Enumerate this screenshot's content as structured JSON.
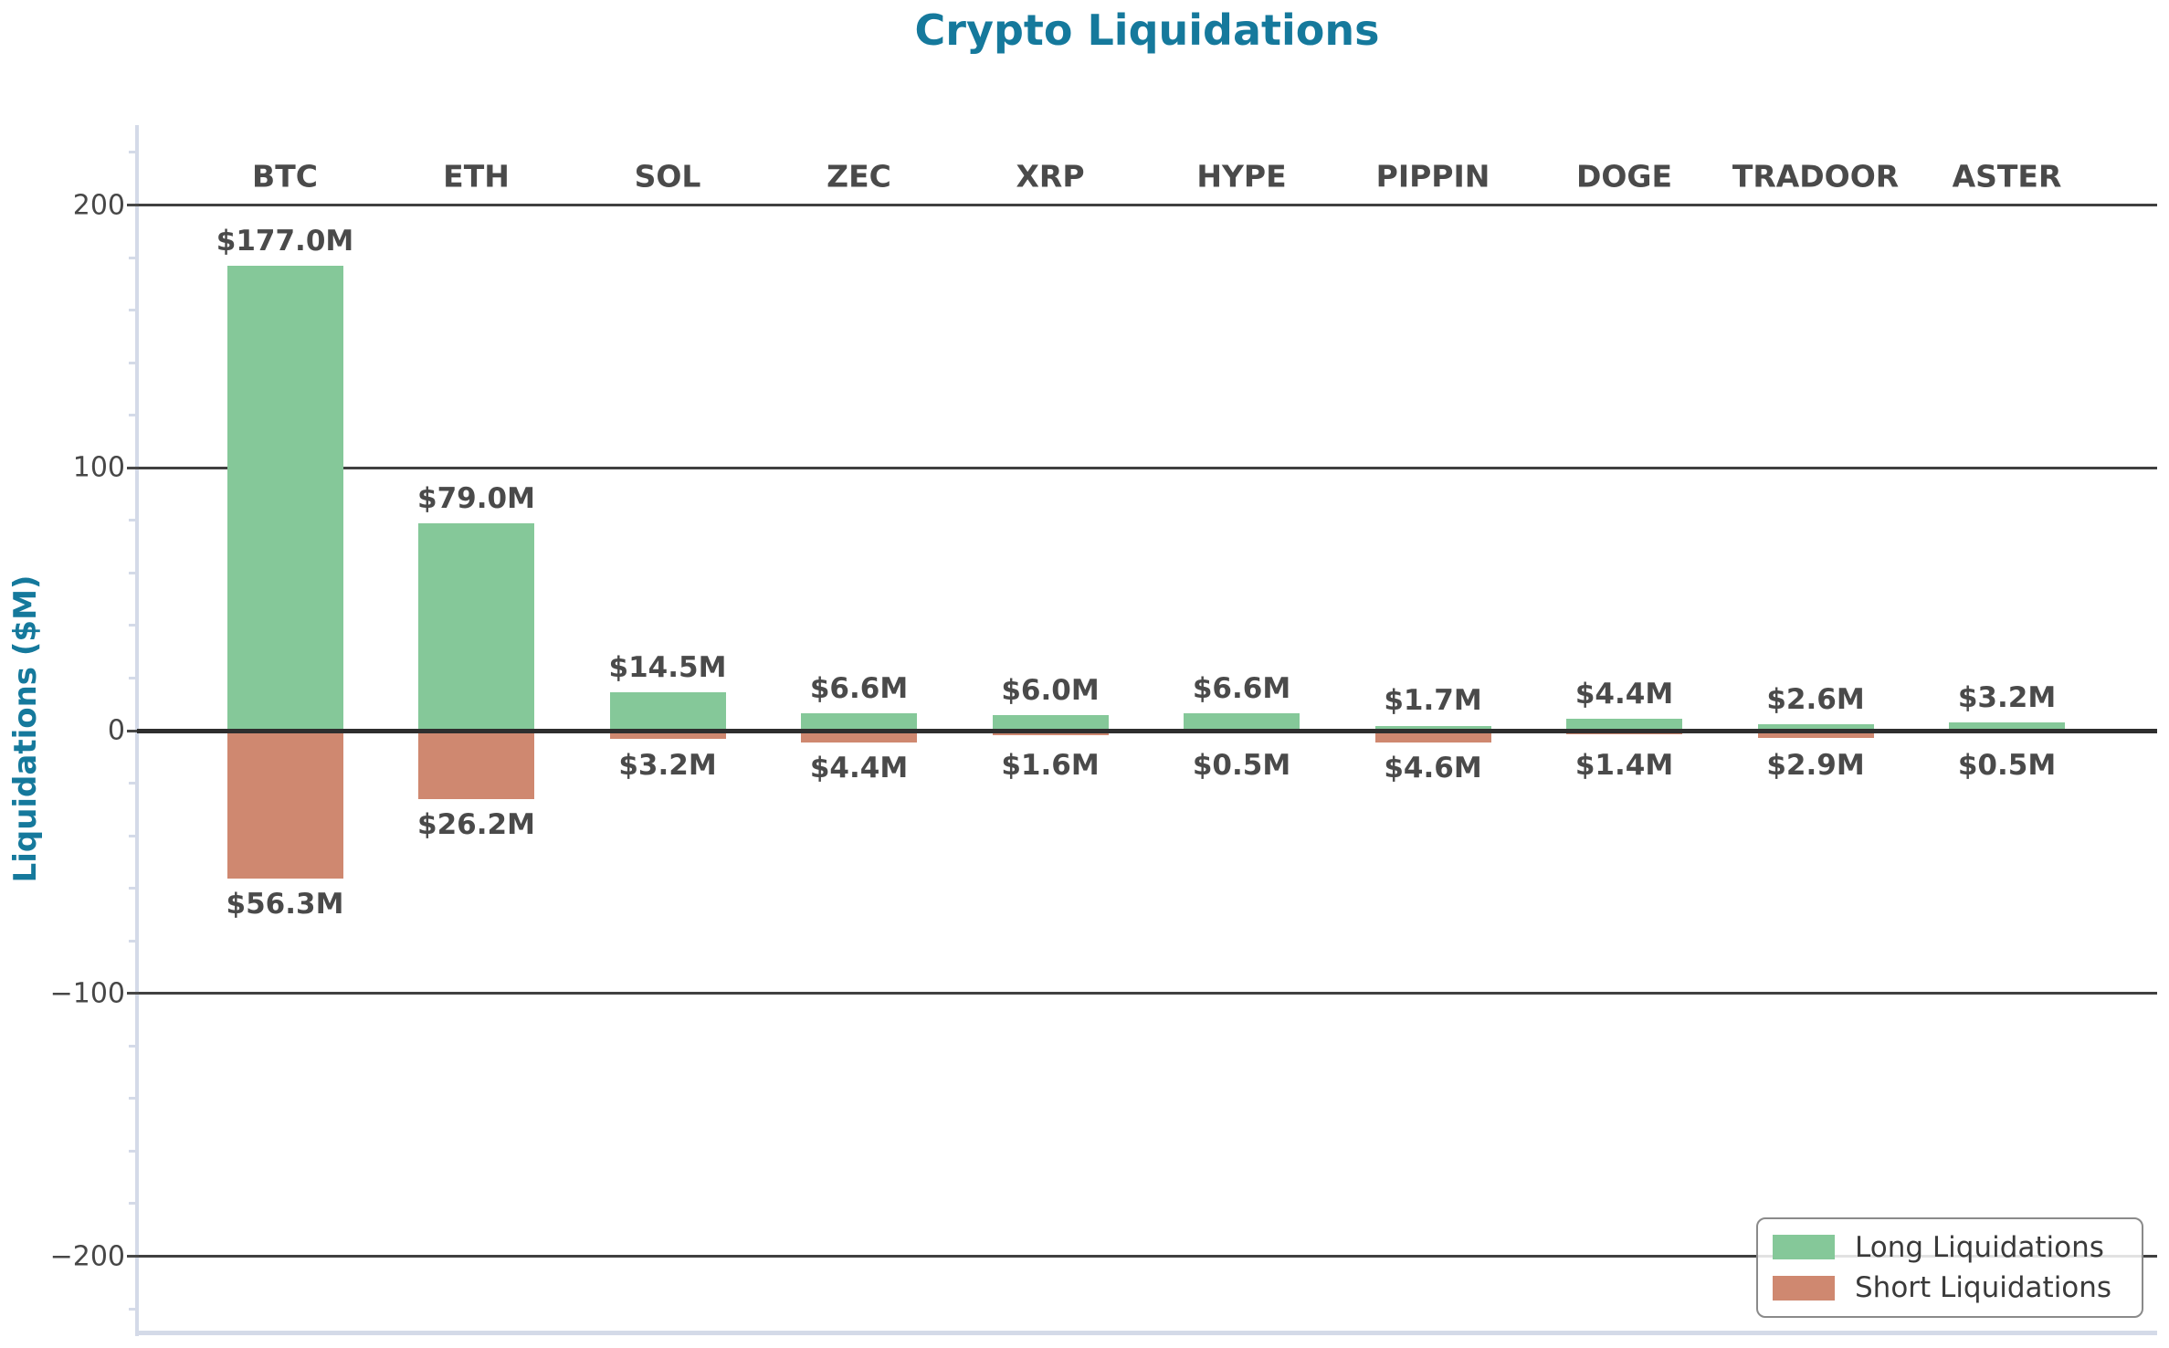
{
  "title": "Crypto Liquidations",
  "ylabel": "Liquidations ($M)",
  "legend": {
    "long_label": "Long Liquidations",
    "short_label": "Short Liquidations",
    "position": "lower right"
  },
  "colors": {
    "long_bar": "#85c899",
    "short_bar": "#cf8870",
    "title_teal": "#15799c",
    "grid_dark": "#404040",
    "zero_line": "#2e2e2e",
    "label_gray": "#4a4a4a",
    "spine_lavender": "#d4dae8"
  },
  "chart_data": {
    "type": "bar",
    "orientation": "vertical-diverging",
    "categories": [
      "BTC",
      "ETH",
      "SOL",
      "ZEC",
      "XRP",
      "HYPE",
      "PIPPIN",
      "DOGE",
      "TRADOOR",
      "ASTER"
    ],
    "series": [
      {
        "name": "Long Liquidations",
        "direction": "up",
        "color": "#85c899",
        "values": [
          177.0,
          79.0,
          14.5,
          6.6,
          6.0,
          6.6,
          1.7,
          4.4,
          2.6,
          3.2
        ],
        "labels": [
          "$177.0M",
          "$79.0M",
          "$14.5M",
          "$6.6M",
          "$6.0M",
          "$6.6M",
          "$1.7M",
          "$4.4M",
          "$2.6M",
          "$3.2M"
        ]
      },
      {
        "name": "Short Liquidations",
        "direction": "down",
        "color": "#cf8870",
        "values": [
          56.3,
          26.2,
          3.2,
          4.4,
          1.6,
          0.5,
          4.6,
          1.4,
          2.9,
          0.5
        ],
        "labels": [
          "$56.3M",
          "$26.2M",
          "$3.2M",
          "$4.4M",
          "$1.6M",
          "$0.5M",
          "$4.6M",
          "$1.4M",
          "$2.9M",
          "$0.5M"
        ]
      }
    ],
    "title": "Crypto Liquidations",
    "xlabel": "",
    "ylabel": "Liquidations ($M)",
    "ytick_labels": [
      "−200",
      "−100",
      "0",
      "100",
      "200"
    ],
    "yticks": [
      -200,
      -100,
      0,
      100,
      200
    ],
    "minor_tick_step": 20,
    "ylim": [
      -230,
      230
    ],
    "grid": "horizontal-major",
    "legend_position": "lower right"
  }
}
